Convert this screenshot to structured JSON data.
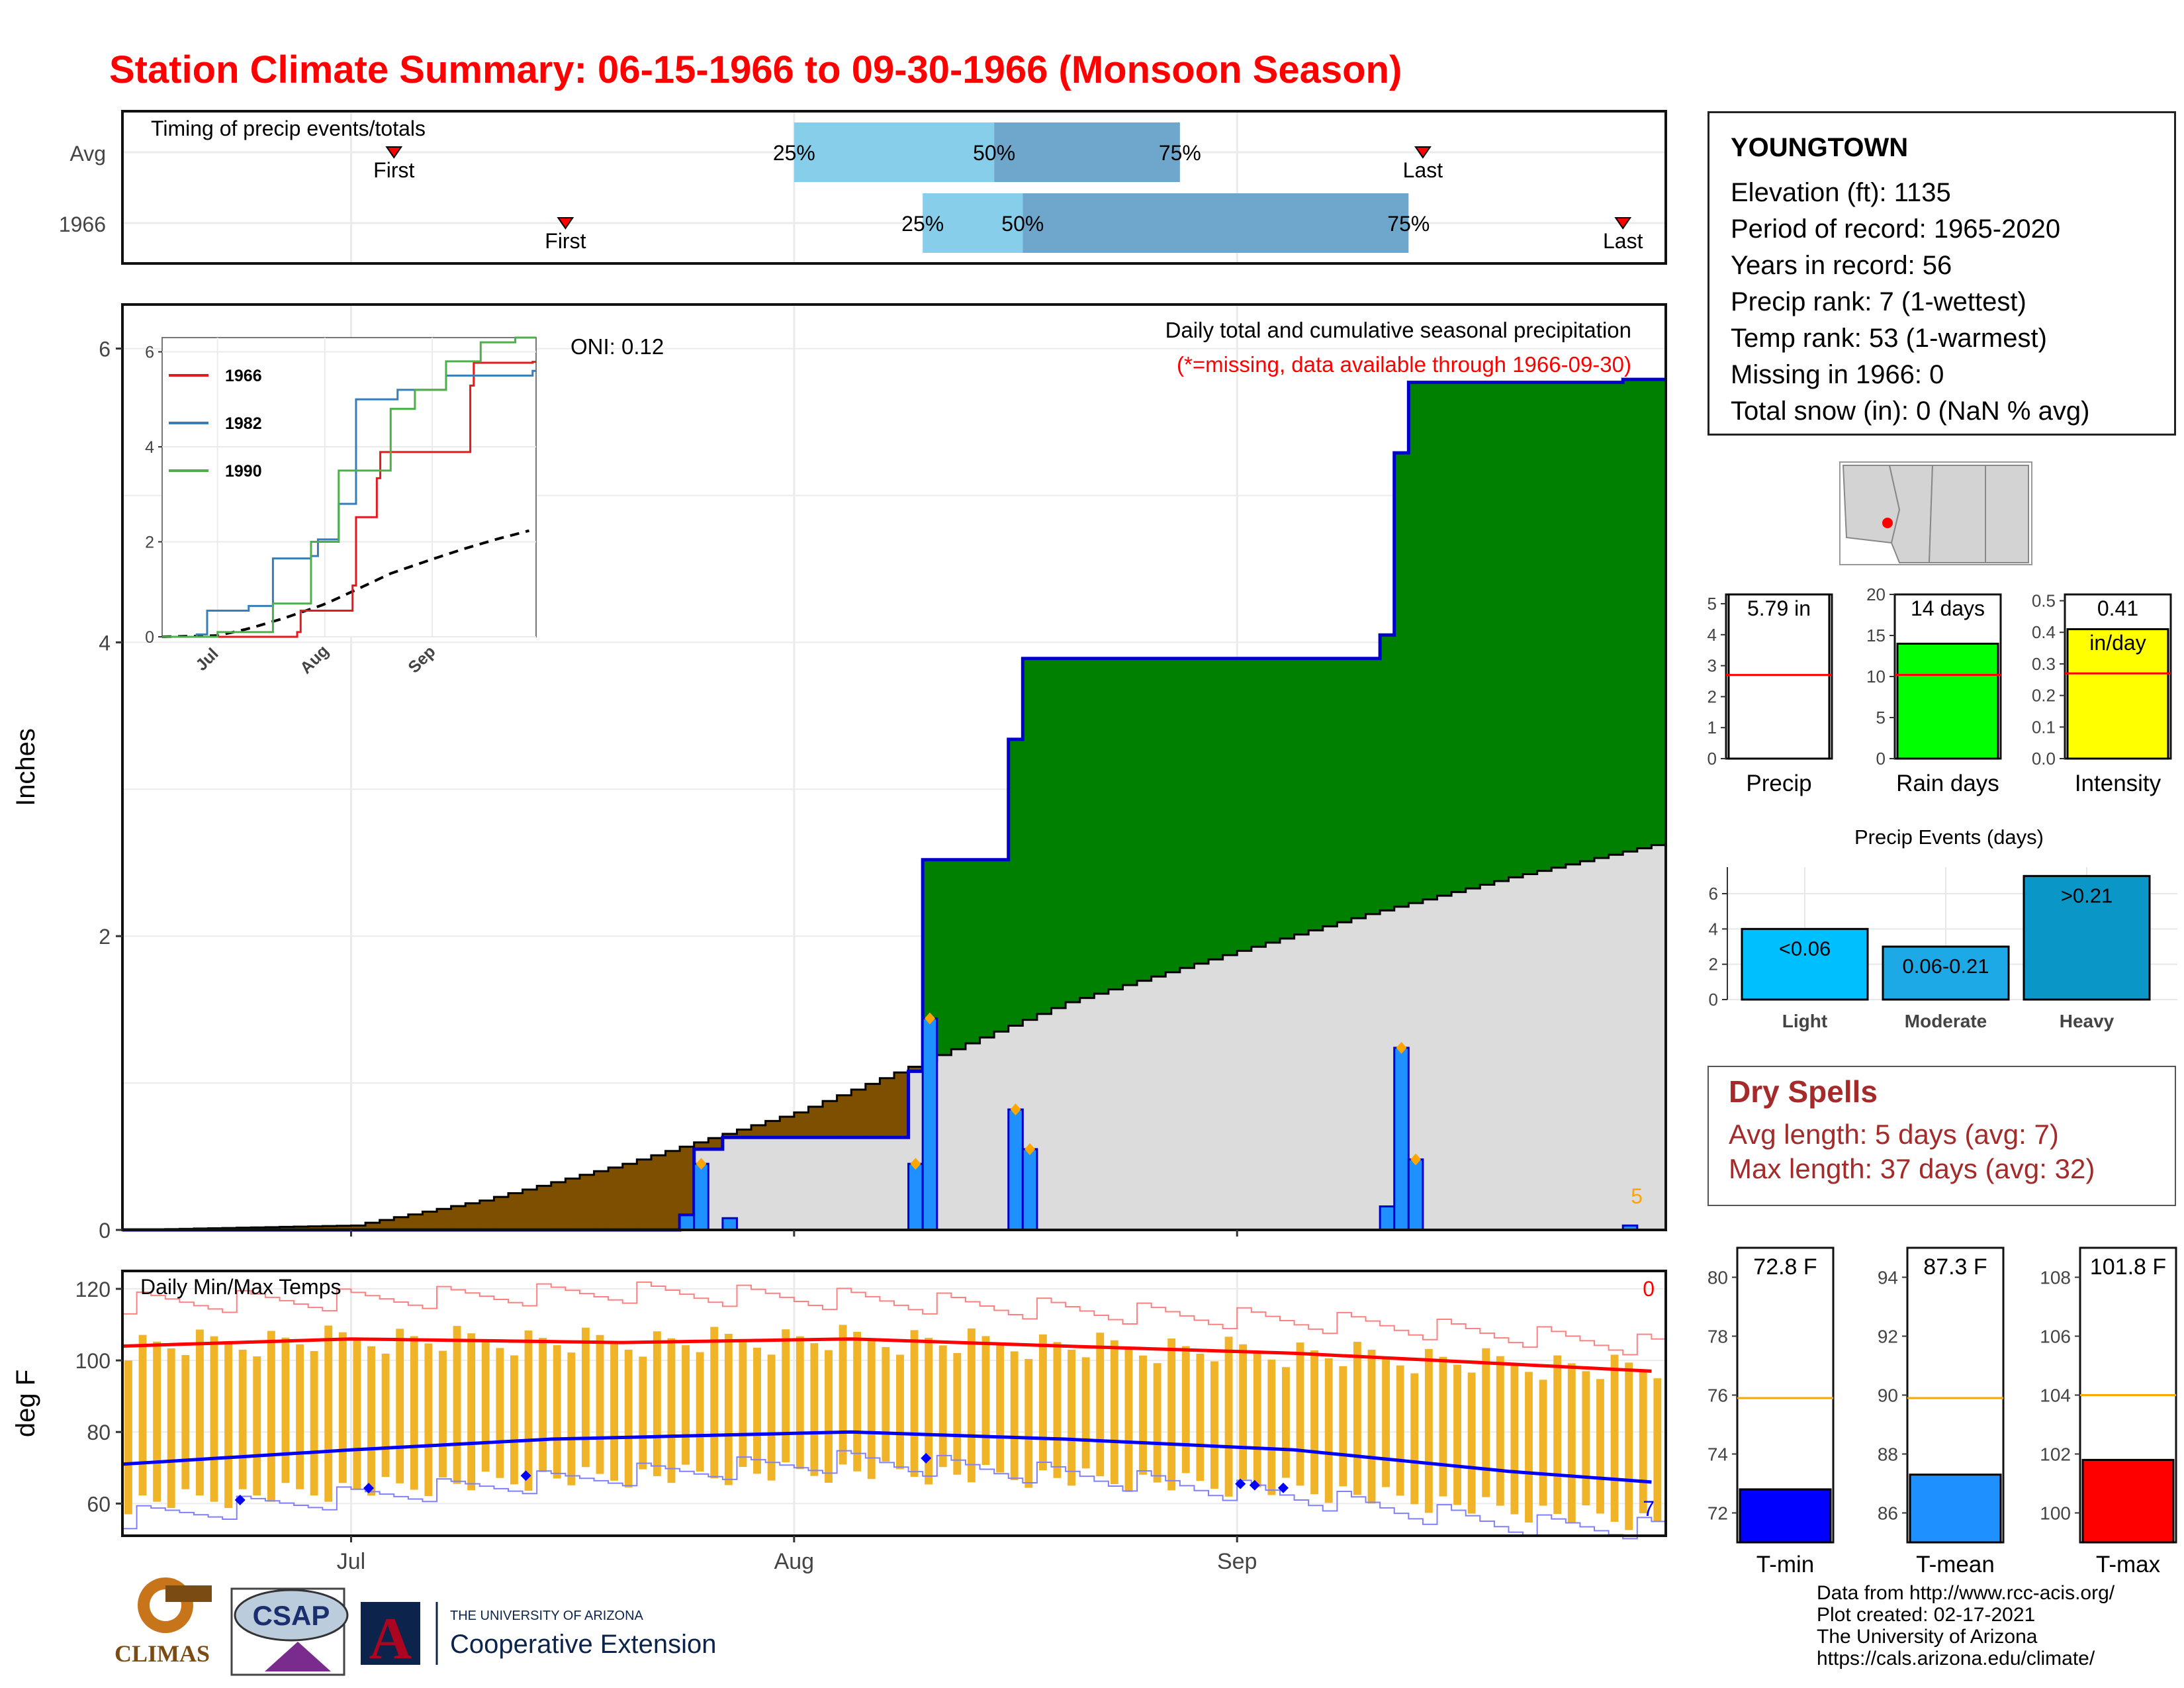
{
  "title": "Station Climate Summary: 06-15-1966 to 09-30-1966 (Monsoon Season)",
  "colors": {
    "title": "#ff0000",
    "precip_bar": "#1e90ff",
    "surplus": "#008000",
    "deficit": "#7f4f00",
    "avg_area": "#dcdcdc"
  },
  "timing": {
    "label": "Timing of precip events/totals",
    "rows": [
      {
        "name": "Avg",
        "first": "First",
        "last": "Last",
        "p25": "25%",
        "p50": "50%",
        "p75": "75%",
        "first_date": "1966-07-04",
        "last_date": "1966-09-14",
        "p25_date": "1966-08-01",
        "p50_date": "1966-08-15",
        "p75_date": "1966-08-28"
      },
      {
        "name": "1966",
        "first": "First",
        "last": "Last",
        "p25": "25%",
        "p50": "50%",
        "p75": "75%",
        "first_date": "1966-07-16",
        "last_date": "1966-09-28",
        "p25_date": "1966-08-10",
        "p50_date": "1966-08-17",
        "p75_date": "1966-09-13"
      }
    ]
  },
  "main_plot": {
    "ylabel": "Inches",
    "subtitle": "Daily total and cumulative seasonal precipitation",
    "note": "(*=missing, data available through 1966-09-30)",
    "oni": "ONI: 0.12",
    "corner_count": "5",
    "x_ticks": [
      "Jul",
      "Aug",
      "Sep"
    ],
    "y_ticks": [
      "0",
      "2",
      "4",
      "6"
    ]
  },
  "inset": {
    "legend": [
      "1966",
      "1982",
      "1990"
    ],
    "series_colors": [
      "#e41a1c",
      "#377eb8",
      "#4daf4a"
    ],
    "x_ticks": [
      "Jul",
      "Aug",
      "Sep"
    ],
    "y_ticks": [
      "0",
      "2",
      "4",
      "6"
    ]
  },
  "temp_plot": {
    "label": "Daily Min/Max Temps",
    "ylabel": "deg F",
    "y_ticks": [
      "60",
      "80",
      "100",
      "120"
    ],
    "x_ticks": [
      "Jul",
      "Aug",
      "Sep"
    ],
    "count_high": "0",
    "count_low": "7"
  },
  "station": {
    "name": "YOUNGTOWN",
    "lines": [
      "Elevation (ft): 1135",
      "Period of record: 1965-2020",
      "Years in record: 56",
      "Precip rank: 7 (1-wettest)",
      "Temp rank: 53 (1-warmest)",
      "Missing in 1966: 0",
      "Total snow (in): 0 (NaN % avg)"
    ]
  },
  "mini_bars": [
    {
      "label": "Precip",
      "value_text": "5.79 in",
      "value": 5.79,
      "avg": 2.7,
      "max": 5.3,
      "ticks": [
        "0",
        "1",
        "2",
        "3",
        "4",
        "5"
      ],
      "color": "#ffffff"
    },
    {
      "label": "Rain days",
      "value_text": "14 days",
      "value": 14,
      "avg": 10.2,
      "max": 20,
      "ticks": [
        "0",
        "5",
        "10",
        "15",
        "20"
      ],
      "color": "#00ff00"
    },
    {
      "label": "Intensity",
      "value_text": "0.41",
      "value_text2": "in/day",
      "value": 0.41,
      "avg": 0.27,
      "max": 0.52,
      "ticks": [
        "0.0",
        "0.1",
        "0.2",
        "0.3",
        "0.4",
        "0.5"
      ],
      "color": "#ffff00"
    }
  ],
  "events": {
    "title": "Precip Events (days)",
    "categories": [
      "Light",
      "Moderate",
      "Heavy"
    ],
    "values": [
      4,
      3,
      7
    ],
    "labels": [
      "<0.06",
      "0.06-0.21",
      ">0.21"
    ],
    "colors": [
      "#00bfff",
      "#1ca9e6",
      "#0a97c8"
    ],
    "ticks": [
      "0",
      "2",
      "4",
      "6"
    ]
  },
  "dry_spells": {
    "title": "Dry Spells",
    "avg": "Avg length: 5 days (avg: 7)",
    "max": "Max length: 37 days (avg: 32)"
  },
  "temps": [
    {
      "label": "T-min",
      "value_text": "72.8 F",
      "value": 72.8,
      "avg": 75.9,
      "min": 71,
      "max": 81,
      "ticks": [
        "72",
        "74",
        "76",
        "78",
        "80"
      ],
      "color": "#0000ff"
    },
    {
      "label": "T-mean",
      "value_text": "87.3 F",
      "value": 87.3,
      "avg": 89.9,
      "min": 85,
      "max": 95,
      "ticks": [
        "86",
        "88",
        "90",
        "92",
        "94"
      ],
      "color": "#1e90ff"
    },
    {
      "label": "T-max",
      "value_text": "101.8 F",
      "value": 101.8,
      "avg": 104,
      "min": 99,
      "max": 109,
      "ticks": [
        "100",
        "102",
        "104",
        "106",
        "108"
      ],
      "color": "#ff0000"
    }
  ],
  "credits": [
    "Data from http://www.rcc-acis.org/",
    "Plot created: 02-17-2021",
    "The University of Arizona",
    "https://cals.arizona.edu/climate/"
  ],
  "logos": {
    "climas": "CLIMAS",
    "csap": "CSAP",
    "ua_small": "THE UNIVERSITY OF ARIZONA",
    "ua_big": "Cooperative Extension"
  },
  "chart_data": {
    "type": "area",
    "title": "Daily total and cumulative seasonal precipitation",
    "ylabel": "Inches",
    "x_range": [
      "1966-06-15",
      "1966-09-30"
    ],
    "ylim": [
      0,
      6.3
    ],
    "daily_precip": [
      {
        "date": "1966-07-24",
        "value": 0.1
      },
      {
        "date": "1966-07-25",
        "value": 0.45
      },
      {
        "date": "1966-07-27",
        "value": 0.08
      },
      {
        "date": "1966-08-09",
        "value": 0.45
      },
      {
        "date": "1966-08-10",
        "value": 1.44
      },
      {
        "date": "1966-08-16",
        "value": 0.82
      },
      {
        "date": "1966-08-17",
        "value": 0.55
      },
      {
        "date": "1966-09-11",
        "value": 0.16
      },
      {
        "date": "1966-09-12",
        "value": 1.24
      },
      {
        "date": "1966-09-13",
        "value": 0.48
      },
      {
        "date": "1966-09-28",
        "value": 0.03
      }
    ],
    "cumulative_1966": [
      {
        "date": "1966-06-15",
        "value": 0
      },
      {
        "date": "1966-07-24",
        "value": 0.1
      },
      {
        "date": "1966-07-25",
        "value": 0.55
      },
      {
        "date": "1966-07-27",
        "value": 0.63
      },
      {
        "date": "1966-08-09",
        "value": 1.08
      },
      {
        "date": "1966-08-10",
        "value": 2.52
      },
      {
        "date": "1966-08-16",
        "value": 3.34
      },
      {
        "date": "1966-08-17",
        "value": 3.89
      },
      {
        "date": "1966-09-11",
        "value": 4.05
      },
      {
        "date": "1966-09-12",
        "value": 5.29
      },
      {
        "date": "1966-09-13",
        "value": 5.77
      },
      {
        "date": "1966-09-28",
        "value": 5.79
      },
      {
        "date": "1966-09-30",
        "value": 5.79
      }
    ],
    "cumulative_avg": [
      {
        "date": "1966-06-15",
        "value": 0
      },
      {
        "date": "1966-07-01",
        "value": 0.03
      },
      {
        "date": "1966-07-10",
        "value": 0.2
      },
      {
        "date": "1966-07-20",
        "value": 0.45
      },
      {
        "date": "1966-08-01",
        "value": 0.8
      },
      {
        "date": "1966-08-10",
        "value": 1.15
      },
      {
        "date": "1966-08-20",
        "value": 1.55
      },
      {
        "date": "1966-09-01",
        "value": 1.9
      },
      {
        "date": "1966-09-10",
        "value": 2.15
      },
      {
        "date": "1966-09-20",
        "value": 2.4
      },
      {
        "date": "1966-09-30",
        "value": 2.62
      }
    ],
    "inset_series": [
      {
        "name": "1966",
        "points": [
          [
            "1966-06-15",
            0
          ],
          [
            "1966-07-24",
            0.1
          ],
          [
            "1966-07-25",
            0.55
          ],
          [
            "1966-08-09",
            1.08
          ],
          [
            "1966-08-10",
            2.52
          ],
          [
            "1966-08-16",
            3.34
          ],
          [
            "1966-08-17",
            3.89
          ],
          [
            "1966-09-12",
            5.29
          ],
          [
            "1966-09-13",
            5.77
          ],
          [
            "1966-09-30",
            5.79
          ]
        ]
      },
      {
        "name": "1982",
        "points": [
          [
            "1966-06-15",
            0
          ],
          [
            "1966-06-25",
            0.05
          ],
          [
            "1966-06-28",
            0.55
          ],
          [
            "1966-07-10",
            0.65
          ],
          [
            "1966-07-17",
            1.65
          ],
          [
            "1966-07-28",
            1.7
          ],
          [
            "1966-07-30",
            2.05
          ],
          [
            "1966-08-05",
            2.8
          ],
          [
            "1966-08-10",
            5.0
          ],
          [
            "1966-08-22",
            5.2
          ],
          [
            "1966-09-05",
            5.5
          ],
          [
            "1966-09-30",
            5.6
          ]
        ]
      },
      {
        "name": "1990",
        "points": [
          [
            "1966-06-15",
            0
          ],
          [
            "1966-07-01",
            0.1
          ],
          [
            "1966-07-17",
            0.7
          ],
          [
            "1966-07-28",
            2.0
          ],
          [
            "1966-08-05",
            3.5
          ],
          [
            "1966-08-20",
            4.8
          ],
          [
            "1966-08-27",
            5.2
          ],
          [
            "1966-09-05",
            5.8
          ],
          [
            "1966-09-15",
            6.2
          ],
          [
            "1966-09-25",
            6.3
          ]
        ]
      }
    ],
    "temp_series": {
      "avg_max": [
        [
          "1966-06-15",
          104
        ],
        [
          "1966-07-01",
          106
        ],
        [
          "1966-07-20",
          105
        ],
        [
          "1966-08-05",
          106
        ],
        [
          "1966-08-20",
          104
        ],
        [
          "1966-09-05",
          102
        ],
        [
          "1966-09-20",
          99
        ],
        [
          "1966-09-30",
          97
        ]
      ],
      "avg_min": [
        [
          "1966-06-15",
          71
        ],
        [
          "1966-07-01",
          75
        ],
        [
          "1966-07-15",
          78
        ],
        [
          "1966-08-05",
          80
        ],
        [
          "1966-08-20",
          78
        ],
        [
          "1966-09-05",
          75
        ],
        [
          "1966-09-20",
          69
        ],
        [
          "1966-09-30",
          66
        ]
      ],
      "record_max": [
        [
          "1966-06-15",
          116
        ],
        [
          "1966-07-01",
          117
        ],
        [
          "1966-07-20",
          119
        ],
        [
          "1966-08-05",
          117
        ],
        [
          "1966-08-25",
          113
        ],
        [
          "1966-09-10",
          110
        ],
        [
          "1966-09-30",
          104
        ]
      ],
      "record_min": [
        [
          "1966-06-15",
          56
        ],
        [
          "1966-07-01",
          62
        ],
        [
          "1966-07-20",
          68
        ],
        [
          "1966-08-05",
          72
        ],
        [
          "1966-08-20",
          68
        ],
        [
          "1966-09-05",
          62
        ],
        [
          "1966-09-20",
          54
        ],
        [
          "1966-09-30",
          53
        ]
      ],
      "record_low_markers": [
        "1966-06-23",
        "1966-07-02",
        "1966-07-13",
        "1966-08-10",
        "1966-09-01",
        "1966-09-02",
        "1966-09-04"
      ]
    }
  }
}
